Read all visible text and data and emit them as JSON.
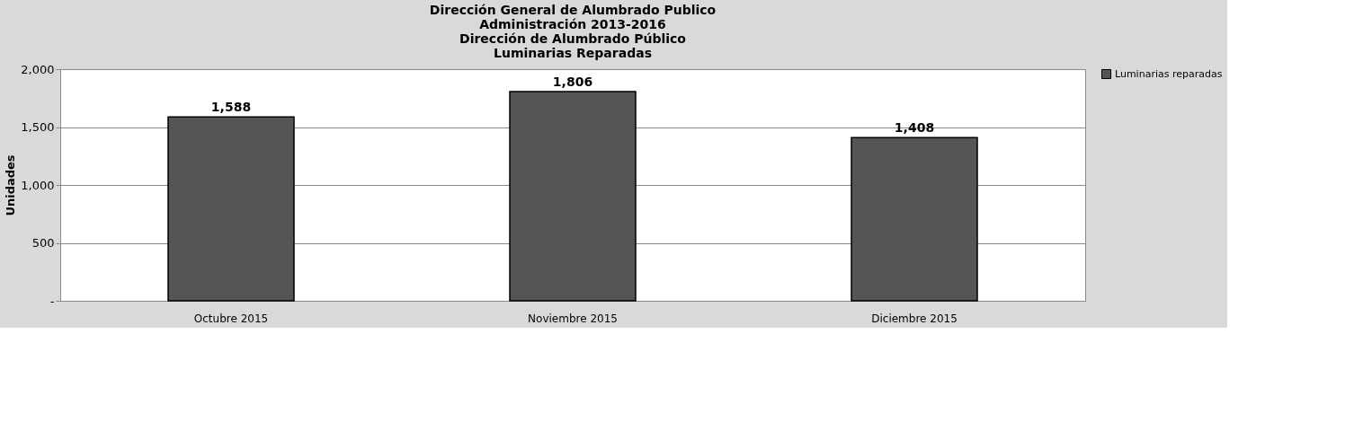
{
  "chart_data": {
    "type": "bar",
    "title": "Dirección General de Alumbrado Publico\nAdministración 2013-2016\nDirección de Alumbrado Público\nLuminarias Reparadas",
    "ylabel": "Unidades",
    "categories": [
      "Octubre 2015",
      "Noviembre 2015",
      "Diciembre 2015"
    ],
    "series": [
      {
        "name": "Luminarias reparadas",
        "color": "#555555",
        "values": [
          1588,
          1806,
          1408
        ]
      }
    ],
    "value_labels": [
      "1,588",
      "1,806",
      "1,408"
    ],
    "ylim": [
      0,
      2000
    ],
    "yticks": [
      {
        "value": 0,
        "label": "-"
      },
      {
        "value": 500,
        "label": "500"
      },
      {
        "value": 1000,
        "label": "1,000"
      },
      {
        "value": 1500,
        "label": "1,500"
      },
      {
        "value": 2000,
        "label": "2,000"
      }
    ],
    "grid": "y",
    "legend": "right"
  }
}
